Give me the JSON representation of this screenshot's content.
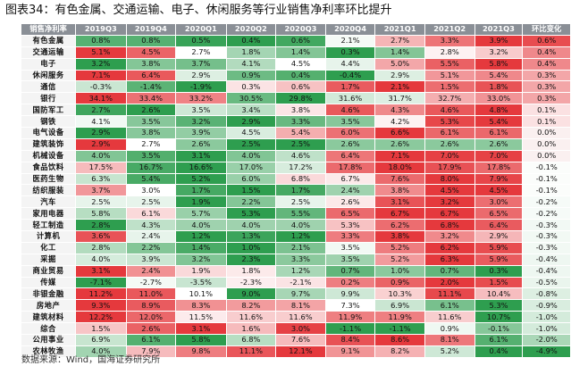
{
  "title": "图表34：有色金属、交通运输、电子、休闲服务等行业销售净利率环比提升",
  "footer": "数据来源：Wind，国海证券研究所",
  "table": {
    "corner": "销售净利率",
    "columns": [
      "2019Q3",
      "2019Q4",
      "2020Q1",
      "2020Q2",
      "2020Q3",
      "2020Q4",
      "2021Q1",
      "2021Q2",
      "2021Q3",
      "环比变化"
    ],
    "rows": [
      {
        "name": "有色金属",
        "values": [
          "0.8%",
          "0.8%",
          "0.5%",
          "0.4%",
          "0.6%",
          "2.1%",
          "2.7%",
          "3.3%",
          "3.9%",
          "0.6%"
        ]
      },
      {
        "name": "交通运输",
        "values": [
          "5.1%",
          "4.5%",
          "2.7%",
          "1.8%",
          "1.4%",
          "0.3%",
          "1.4%",
          "2.8%",
          "3.2%",
          "0.4%"
        ]
      },
      {
        "name": "电子",
        "values": [
          "3.2%",
          "3.8%",
          "3.7%",
          "4.1%",
          "4.5%",
          "4.4%",
          "5.0%",
          "5.5%",
          "5.8%",
          "0.4%"
        ]
      },
      {
        "name": "休闲服务",
        "values": [
          "7.1%",
          "6.4%",
          "2.9%",
          "0.9%",
          "0.4%",
          "-0.4%",
          "2.9%",
          "5.1%",
          "5.4%",
          "0.3%"
        ]
      },
      {
        "name": "通信",
        "values": [
          "-0.3%",
          "-1.4%",
          "-1.9%",
          "0.3%",
          "0.6%",
          "1.7%",
          "2.1%",
          "1.5%",
          "1.8%",
          "0.3%"
        ]
      },
      {
        "name": "银行",
        "values": [
          "34.1%",
          "33.4%",
          "33.2%",
          "30.5%",
          "29.8%",
          "31.6%",
          "31.7%",
          "32.7%",
          "33.0%",
          "0.3%"
        ]
      },
      {
        "name": "国防军工",
        "values": [
          "2.7%",
          "2.6%",
          "3.5%",
          "3.4%",
          "3.8%",
          "4.6%",
          "4.3%",
          "4.6%",
          "4.8%",
          "0.1%"
        ]
      },
      {
        "name": "钢铁",
        "values": [
          "4.1%",
          "3.5%",
          "3.2%",
          "2.9%",
          "3.3%",
          "3.5%",
          "4.2%",
          "5.3%",
          "5.4%",
          "0.1%"
        ]
      },
      {
        "name": "电气设备",
        "values": [
          "2.9%",
          "3.8%",
          "3.9%",
          "4.5%",
          "5.4%",
          "6.0%",
          "6.6%",
          "6.1%",
          "6.1%",
          "0.0%"
        ]
      },
      {
        "name": "建筑装饰",
        "values": [
          "2.9%",
          "2.7%",
          "2.6%",
          "2.5%",
          "2.5%",
          "2.6%",
          "2.6%",
          "2.6%",
          "2.6%",
          "0.0%"
        ]
      },
      {
        "name": "机械设备",
        "values": [
          "4.0%",
          "3.5%",
          "3.1%",
          "4.0%",
          "4.6%",
          "6.4%",
          "7.1%",
          "7.0%",
          "7.0%",
          "0.0%"
        ]
      },
      {
        "name": "食品饮料",
        "values": [
          "17.5%",
          "16.7%",
          "16.6%",
          "17.0%",
          "17.2%",
          "17.8%",
          "18.0%",
          "17.9%",
          "17.8%",
          "-0.1%"
        ]
      },
      {
        "name": "医药生物",
        "values": [
          "6.3%",
          "5.4%",
          "5.2%",
          "6.0%",
          "6.8%",
          "6.7%",
          "7.6%",
          "8.0%",
          "7.9%",
          "-0.1%"
        ]
      },
      {
        "name": "纺织服装",
        "values": [
          "3.7%",
          "3.0%",
          "1.7%",
          "1.5%",
          "1.7%",
          "2.4%",
          "3.8%",
          "4.5%",
          "4.5%",
          "-0.1%"
        ]
      },
      {
        "name": "汽车",
        "values": [
          "2.5%",
          "2.5%",
          "1.9%",
          "2.2%",
          "2.5%",
          "2.6%",
          "3.1%",
          "3.2%",
          "3.0%",
          "-0.2%"
        ]
      },
      {
        "name": "家用电器",
        "values": [
          "5.8%",
          "6.1%",
          "5.7%",
          "5.3%",
          "5.5%",
          "6.5%",
          "6.7%",
          "6.7%",
          "6.5%",
          "-0.2%"
        ]
      },
      {
        "name": "轻工制造",
        "values": [
          "2.8%",
          "4.3%",
          "4.0%",
          "4.0%",
          "4.0%",
          "5.3%",
          "6.2%",
          "6.8%",
          "6.4%",
          "-0.3%"
        ]
      },
      {
        "name": "计算机",
        "values": [
          "3.6%",
          "2.4%",
          "1.2%",
          "1.3%",
          "1.2%",
          "3.3%",
          "3.8%",
          "3.2%",
          "2.9%",
          "-0.3%"
        ]
      },
      {
        "name": "化工",
        "values": [
          "2.8%",
          "2.2%",
          "1.4%",
          "1.0%",
          "2.1%",
          "3.5%",
          "5.2%",
          "6.2%",
          "5.9%",
          "-0.3%"
        ]
      },
      {
        "name": "采掘",
        "values": [
          "4.0%",
          "3.9%",
          "3.2%",
          "2.3%",
          "3.3%",
          "3.5%",
          "5.2%",
          "6.3%",
          "5.9%",
          "-0.4%"
        ]
      },
      {
        "name": "商业贸易",
        "values": [
          "3.1%",
          "2.4%",
          "1.9%",
          "1.8%",
          "1.2%",
          "0.7%",
          "1.0%",
          "0.7%",
          "0.3%",
          "-0.4%"
        ]
      },
      {
        "name": "传媒",
        "values": [
          "-7.1%",
          "-2.7%",
          "-3.5%",
          "-2.3%",
          "-2.1%",
          "0.2%",
          "0.9%",
          "2.0%",
          "1.5%",
          "-0.5%"
        ]
      },
      {
        "name": "非银金融",
        "values": [
          "11.2%",
          "11.0%",
          "10.1%",
          "9.0%",
          "9.7%",
          "9.9%",
          "10.3%",
          "11.1%",
          "10.4%",
          "-0.8%"
        ]
      },
      {
        "name": "房地产",
        "values": [
          "9.3%",
          "8.9%",
          "8.3%",
          "8.2%",
          "8.1%",
          "7.3%",
          "6.9%",
          "6.1%",
          "5.3%",
          "-0.9%"
        ]
      },
      {
        "name": "建筑材料",
        "values": [
          "12.2%",
          "12.0%",
          "11.5%",
          "11.6%",
          "11.6%",
          "11.9%",
          "11.9%",
          "11.6%",
          "10.7%",
          "-1.0%"
        ]
      },
      {
        "name": "综合",
        "values": [
          "1.5%",
          "2.6%",
          "3.1%",
          "1.6%",
          "3.0%",
          "-1.1%",
          "-1.1%",
          "0.9%",
          "-0.1%",
          "-1.0%"
        ]
      },
      {
        "name": "公用事业",
        "values": [
          "6.9%",
          "6.1%",
          "5.8%",
          "6.8%",
          "7.6%",
          "8.4%",
          "8.6%",
          "8.1%",
          "6.1%",
          "-2.0%"
        ]
      },
      {
        "name": "农林牧渔",
        "values": [
          "4.0%",
          "7.9%",
          "9.8%",
          "11.1%",
          "12.1%",
          "9.1%",
          "8.2%",
          "5.2%",
          "0.4%",
          "-4.9%"
        ]
      }
    ]
  },
  "colors": {
    "header_bg": "#8a8f96",
    "row_label_bg": "#f4f4f4",
    "high": "#e5393d",
    "low": "#2e9e4f",
    "mid": "#ffffff"
  }
}
